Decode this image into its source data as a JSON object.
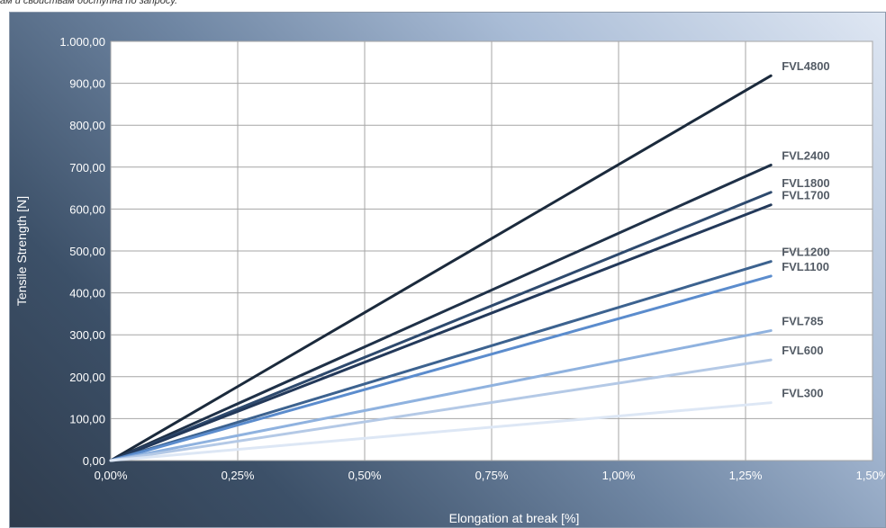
{
  "header": {
    "note": "ам и свойствам доступна по запросу."
  },
  "chart_data": {
    "type": "line",
    "xlabel": "Elongation at break [%]",
    "ylabel": "Tensile Strength [N]",
    "xlim": [
      0,
      1.5
    ],
    "ylim": [
      0,
      1000
    ],
    "x_ticks": [
      "0,00%",
      "0,25%",
      "0,50%",
      "0,75%",
      "1,00%",
      "1,25%",
      "1,50%"
    ],
    "y_ticks": [
      "0,00",
      "100,00",
      "200,00",
      "300,00",
      "400,00",
      "500,00",
      "600,00",
      "700,00",
      "800,00",
      "900,00",
      "1.000,00"
    ],
    "grid": true,
    "series": [
      {
        "name": "FVL4800",
        "x": [
          0,
          1.3
        ],
        "y": [
          0,
          918
        ],
        "color": "#1b2a3c"
      },
      {
        "name": "FVL2400",
        "x": [
          0,
          1.3
        ],
        "y": [
          0,
          705
        ],
        "color": "#1f3148"
      },
      {
        "name": "FVL1800",
        "x": [
          0,
          1.3
        ],
        "y": [
          0,
          640
        ],
        "color": "#2e4a6e"
      },
      {
        "name": "FVL1700",
        "x": [
          0,
          1.3
        ],
        "y": [
          0,
          610
        ],
        "color": "#23395a"
      },
      {
        "name": "FVL1200",
        "x": [
          0,
          1.3
        ],
        "y": [
          0,
          475
        ],
        "color": "#3c628f"
      },
      {
        "name": "FVL1100",
        "x": [
          0,
          1.3
        ],
        "y": [
          0,
          440
        ],
        "color": "#5b8ccd"
      },
      {
        "name": "FVL785",
        "x": [
          0,
          1.3
        ],
        "y": [
          0,
          310
        ],
        "color": "#8fb2df"
      },
      {
        "name": "FVL600",
        "x": [
          0,
          1.3
        ],
        "y": [
          0,
          240
        ],
        "color": "#b4c9e6"
      },
      {
        "name": "FVL300",
        "x": [
          0,
          1.3
        ],
        "y": [
          0,
          138
        ],
        "color": "#dde7f5"
      }
    ]
  }
}
